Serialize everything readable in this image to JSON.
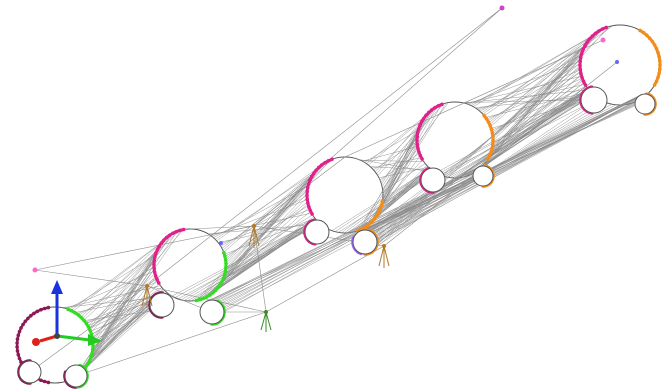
{
  "colors": {
    "background": "#ffffff",
    "line": "#8a8a8a",
    "ring_outline": "#555555",
    "magenta": "#e0218a",
    "orange": "#f28c1a",
    "green": "#33dd22",
    "dark_magenta": "#8c1a55",
    "violet": "#9966ff",
    "node_pink": "#ff66cc",
    "axis_x": "#e0201a",
    "axis_y": "#22cc22",
    "axis_z": "#1a33dd",
    "tripod": "#b07a2a",
    "tripod_green": "#3a8a2a"
  },
  "icons": {
    "axis_triad": "xyz-triad-icon",
    "tripod": "tripod-support-icon",
    "node_marker": "node-marker-icon"
  }
}
